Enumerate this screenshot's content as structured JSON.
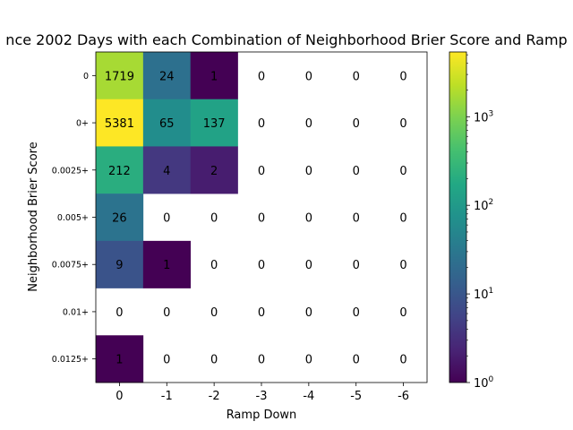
{
  "chart_data": {
    "type": "heatmap",
    "title": "nce 2002 Days with each Combination of Neighborhood Brier Score and Ramp",
    "xlabel": "Ramp Down",
    "ylabel": "Neighborhood Brier Score",
    "x_categories": [
      "0",
      "-1",
      "-2",
      "-3",
      "-4",
      "-5",
      "-6"
    ],
    "y_categories": [
      "0",
      "0+",
      "0.0025+",
      "0.005+",
      "0.0075+",
      "0.01+",
      "0.0125+"
    ],
    "values": [
      [
        1719,
        24,
        1,
        0,
        0,
        0,
        0
      ],
      [
        5381,
        65,
        137,
        0,
        0,
        0,
        0
      ],
      [
        212,
        4,
        2,
        0,
        0,
        0,
        0
      ],
      [
        26,
        0,
        0,
        0,
        0,
        0,
        0
      ],
      [
        9,
        1,
        0,
        0,
        0,
        0,
        0
      ],
      [
        0,
        0,
        0,
        0,
        0,
        0,
        0
      ],
      [
        1,
        0,
        0,
        0,
        0,
        0,
        0
      ]
    ],
    "color_scale": "log",
    "colormap": "viridis",
    "zero_cells": "blank (white)",
    "colorbar": {
      "range": [
        1,
        5381
      ],
      "tick_labels": [
        {
          "value": 1,
          "base": "10",
          "exp": "0"
        },
        {
          "value": 10,
          "base": "10",
          "exp": "1"
        },
        {
          "value": 100,
          "base": "10",
          "exp": "2"
        },
        {
          "value": 1000,
          "base": "10",
          "exp": "3"
        }
      ]
    }
  }
}
